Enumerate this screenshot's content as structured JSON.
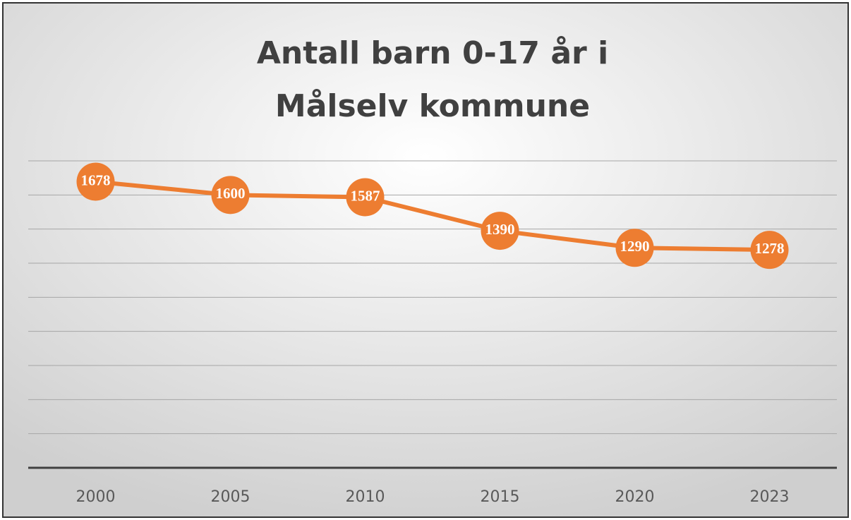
{
  "chart_data": {
    "type": "line",
    "title": [
      "Antall barn 0-17 år i",
      "Målselv kommune"
    ],
    "categories": [
      "2000",
      "2005",
      "2010",
      "2015",
      "2020",
      "2023"
    ],
    "values": [
      1678,
      1600,
      1587,
      1390,
      1290,
      1278
    ],
    "color": "#ed7d31",
    "ylim": [
      0,
      1800
    ],
    "yticks": [
      0,
      200,
      400,
      600,
      800,
      1000,
      1200,
      1400,
      1600,
      1800
    ],
    "grid": true
  }
}
